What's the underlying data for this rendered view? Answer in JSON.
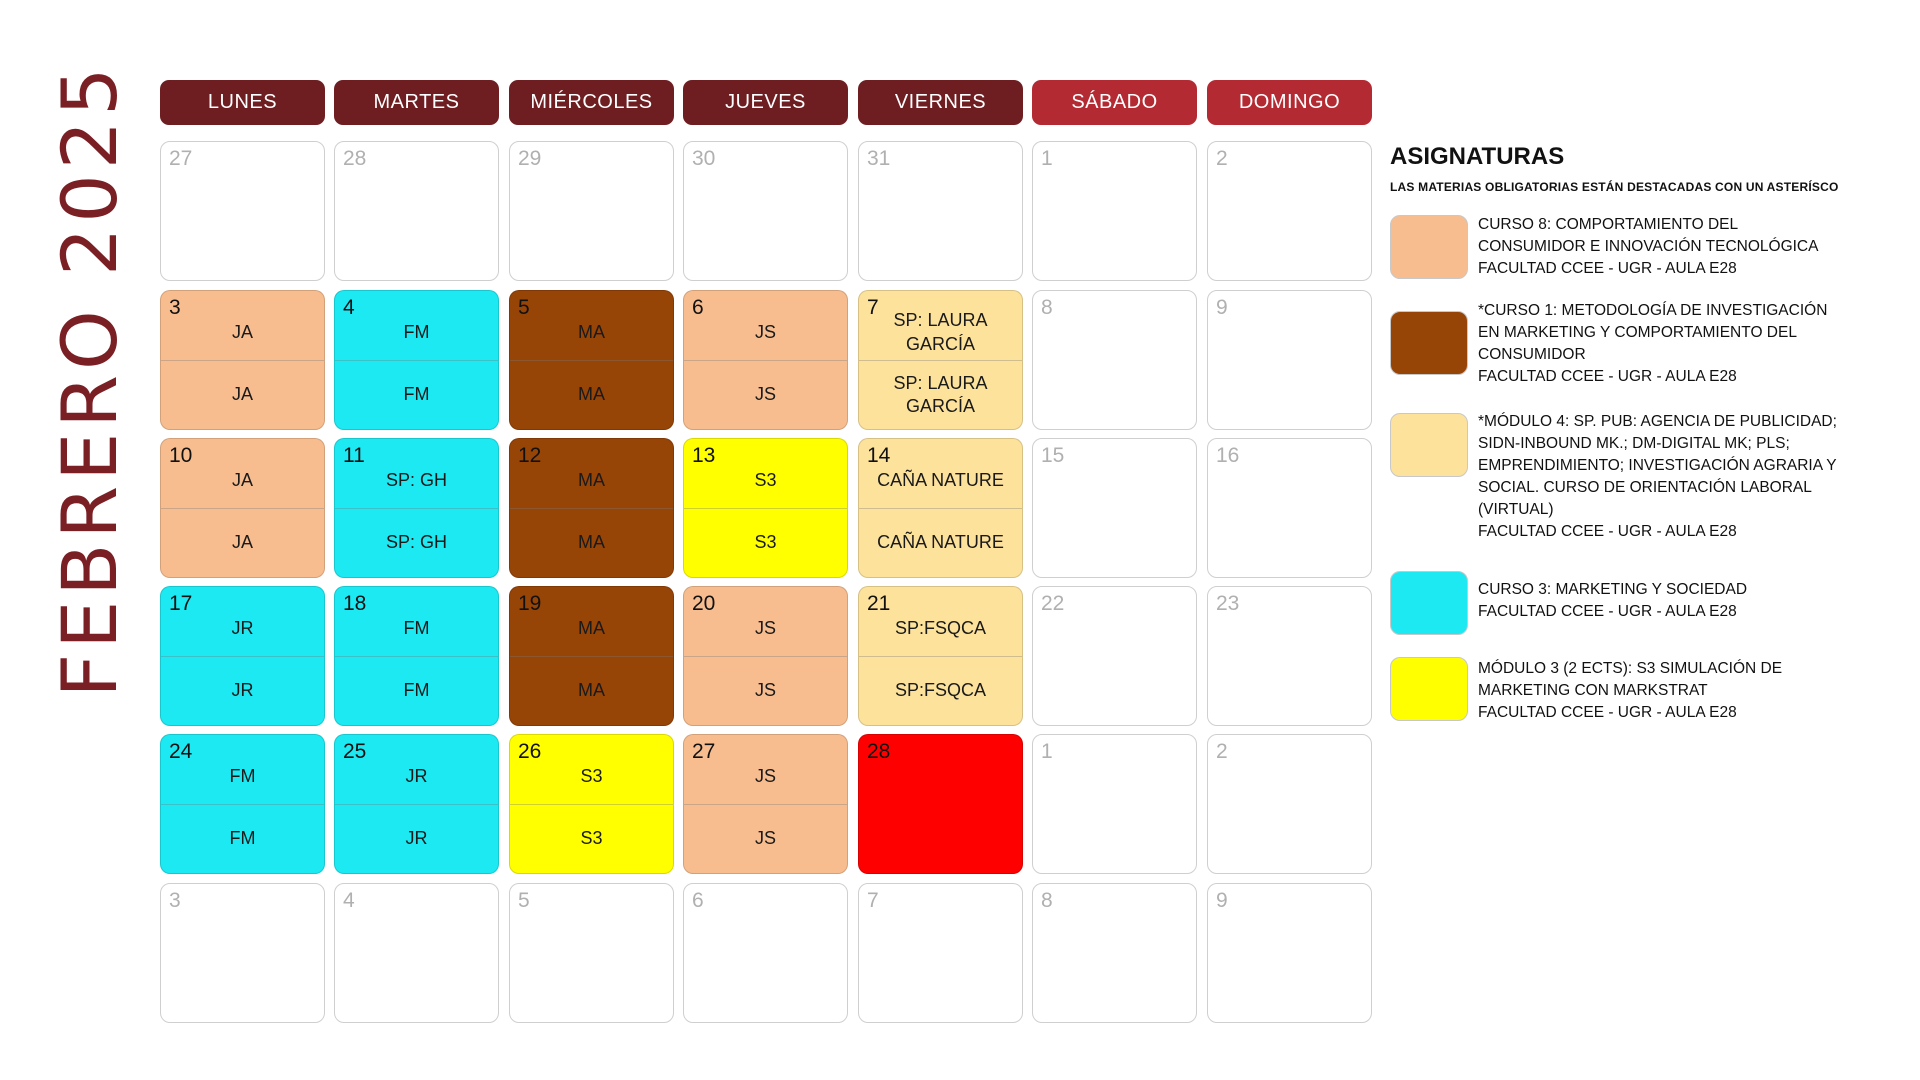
{
  "title": "FEBRERO 2025",
  "weekdays": [
    "LUNES",
    "MARTES",
    "MIÉRCOLES",
    "JUEVES",
    "VIERNES",
    "SÁBADO",
    "DOMINGO"
  ],
  "colors": {
    "header_weekday": "#6e1d21",
    "header_weekend": "#b32a33",
    "salmon": "#f7bd8f",
    "cyan": "#1de9f3",
    "brown": "#974407",
    "cream": "#fde29c",
    "yellow": "#ffff00",
    "red": "#ff0000",
    "white": "#ffffff"
  },
  "weeks": [
    [
      {
        "day": "27",
        "muted": true
      },
      {
        "day": "28",
        "muted": true
      },
      {
        "day": "29",
        "muted": true
      },
      {
        "day": "30",
        "muted": true
      },
      {
        "day": "31",
        "muted": true
      },
      {
        "day": "1",
        "muted": true
      },
      {
        "day": "2",
        "muted": true
      }
    ],
    [
      {
        "day": "3",
        "color": "salmon",
        "top": "JA",
        "bottom": "JA"
      },
      {
        "day": "4",
        "color": "cyan",
        "top": "FM",
        "bottom": "FM"
      },
      {
        "day": "5",
        "color": "brown",
        "top": "MA",
        "bottom": "MA"
      },
      {
        "day": "6",
        "color": "salmon",
        "top": "JS",
        "bottom": "JS"
      },
      {
        "day": "7",
        "color": "cream",
        "top": "SP: LAURA GARCÍA",
        "bottom": "SP: LAURA GARCÍA"
      },
      {
        "day": "8",
        "muted": true
      },
      {
        "day": "9",
        "muted": true
      }
    ],
    [
      {
        "day": "10",
        "color": "salmon",
        "top": "JA",
        "bottom": "JA"
      },
      {
        "day": "11",
        "color": "cyan",
        "top": "SP: GH",
        "bottom": "SP: GH"
      },
      {
        "day": "12",
        "color": "brown",
        "top": "MA",
        "bottom": "MA"
      },
      {
        "day": "13",
        "color": "yellow",
        "top": "S3",
        "bottom": "S3"
      },
      {
        "day": "14",
        "color": "cream",
        "top": "CAÑA NATURE",
        "bottom": "CAÑA NATURE"
      },
      {
        "day": "15",
        "muted": true
      },
      {
        "day": "16",
        "muted": true
      }
    ],
    [
      {
        "day": "17",
        "color": "cyan",
        "top": "JR",
        "bottom": "JR"
      },
      {
        "day": "18",
        "color": "cyan",
        "top": "FM",
        "bottom": "FM"
      },
      {
        "day": "19",
        "color": "brown",
        "top": "MA",
        "bottom": "MA"
      },
      {
        "day": "20",
        "color": "salmon",
        "top": "JS",
        "bottom": "JS"
      },
      {
        "day": "21",
        "color": "cream",
        "top": "SP:FSQCA",
        "bottom": "SP:FSQCA"
      },
      {
        "day": "22",
        "muted": true
      },
      {
        "day": "23",
        "muted": true
      }
    ],
    [
      {
        "day": "24",
        "color": "cyan",
        "top": "FM",
        "bottom": "FM"
      },
      {
        "day": "25",
        "color": "cyan",
        "top": "JR",
        "bottom": "JR"
      },
      {
        "day": "26",
        "color": "yellow",
        "top": "S3",
        "bottom": "S3"
      },
      {
        "day": "27",
        "color": "salmon",
        "top": "JS",
        "bottom": "JS"
      },
      {
        "day": "28",
        "color": "red",
        "solid": true
      },
      {
        "day": "1",
        "muted": true
      },
      {
        "day": "2",
        "muted": true
      }
    ],
    [
      {
        "day": "3",
        "muted": true
      },
      {
        "day": "4",
        "muted": true
      },
      {
        "day": "5",
        "muted": true
      },
      {
        "day": "6",
        "muted": true
      },
      {
        "day": "7",
        "muted": true
      },
      {
        "day": "8",
        "muted": true
      },
      {
        "day": "9",
        "muted": true
      }
    ]
  ],
  "legend": {
    "title": "ASIGNATURAS",
    "subtitle": "LAS MATERIAS OBLIGATORIAS ESTÁN DESTACADAS CON UN ASTERÍSCO",
    "items": [
      {
        "color": "salmon",
        "text": [
          "CURSO 8: COMPORTAMIENTO DEL",
          "CONSUMIDOR E INNOVACIÓN TECNOLÓGICA",
          "FACULTAD CCEE - UGR - AULA E28"
        ]
      },
      {
        "color": "brown",
        "text": [
          "*CURSO 1: METODOLOGÍA DE INVESTIGACIÓN",
          "EN MARKETING Y COMPORTAMIENTO DEL",
          "CONSUMIDOR",
          "FACULTAD CCEE - UGR - AULA E28"
        ]
      },
      {
        "color": "cream",
        "text": [
          "*MÓDULO 4: SP. PUB: AGENCIA DE PUBLICIDAD;",
          "SIDN-INBOUND MK.; DM-DIGITAL MK; PLS;",
          "EMPRENDIMIENTO; INVESTIGACIÓN AGRARIA Y",
          "SOCIAL. CURSO DE ORIENTACIÓN LABORAL",
          "(VIRTUAL)",
          "FACULTAD CCEE - UGR - AULA E28"
        ]
      },
      {
        "color": "cyan",
        "text": [
          "CURSO 3: MARKETING Y SOCIEDAD",
          "FACULTAD CCEE - UGR - AULA E28"
        ]
      },
      {
        "color": "yellow",
        "text": [
          "MÓDULO 3 (2 ECTS):  S3 SIMULACIÓN DE",
          "MARKETING CON MARKSTRAT",
          "FACULTAD CCEE - UGR - AULA E28"
        ]
      }
    ]
  }
}
